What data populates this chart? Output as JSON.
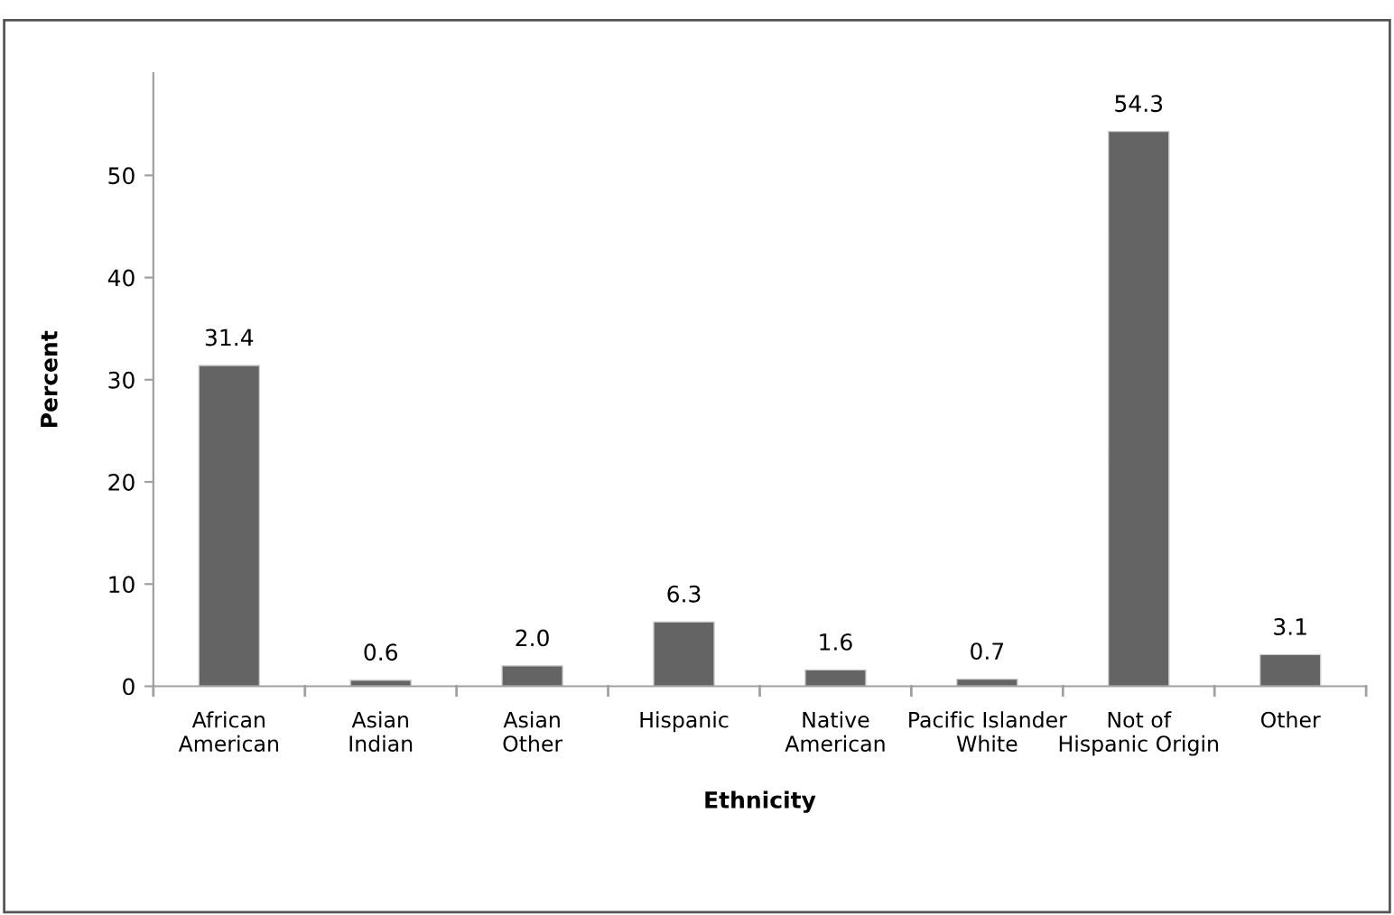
{
  "chart_data": {
    "type": "bar",
    "xlabel": "Ethnicity",
    "ylabel": "Percent",
    "categories": [
      "African\nAmerican",
      "Asian\nIndian",
      "Asian\nOther",
      "Hispanic",
      "Native\nAmerican",
      "Pacific Islander\nWhite",
      "Not of\nHispanic Origin",
      "Other"
    ],
    "values": [
      31.4,
      0.6,
      2.0,
      6.3,
      1.6,
      0.7,
      54.3,
      3.1
    ],
    "value_labels": [
      "31.4",
      "0.6",
      "2.0",
      "6.3",
      "1.6",
      "0.7",
      "54.3",
      "3.1"
    ],
    "color": "#646464",
    "ylim": [
      0,
      60
    ],
    "yticks": [
      0,
      10,
      20,
      30,
      40,
      50
    ],
    "grid": false
  }
}
